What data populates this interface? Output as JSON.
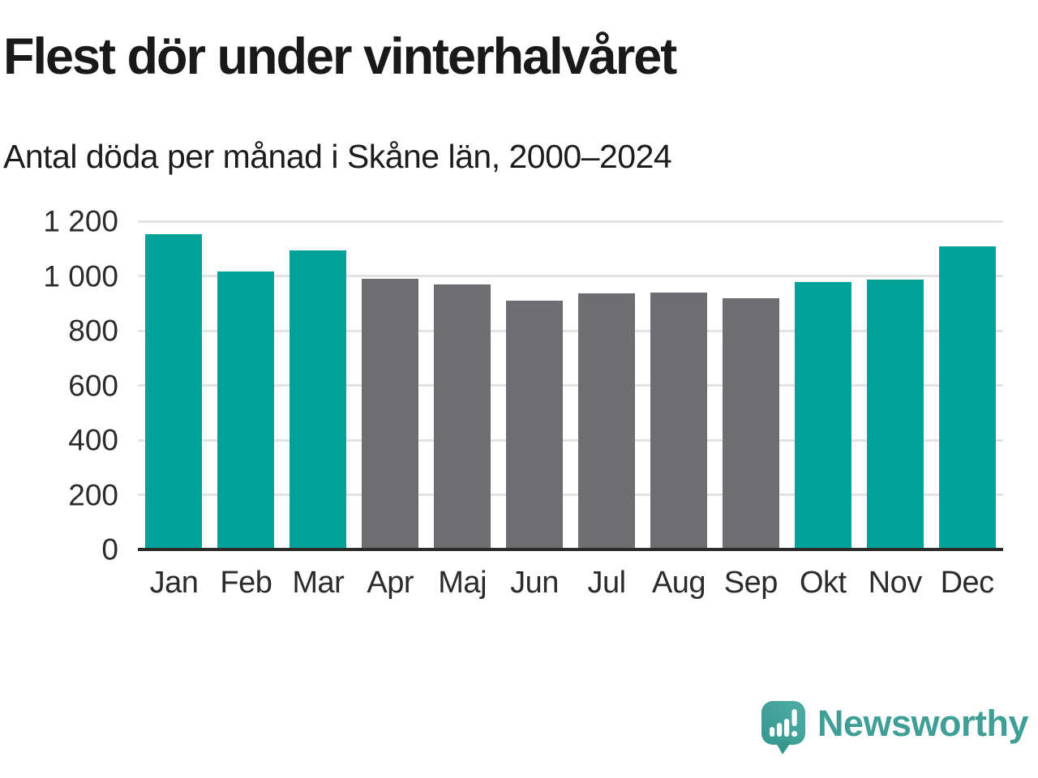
{
  "title": "Flest dör under vinterhalvåret",
  "subtitle": "Antal döda per månad i Skåne län, 2000–2024",
  "chart_data": {
    "type": "bar",
    "title": "Flest dör under vinterhalvåret",
    "subtitle": "Antal döda per månad i Skåne län, 2000–2024",
    "categories": [
      "Jan",
      "Feb",
      "Mar",
      "Apr",
      "Maj",
      "Jun",
      "Jul",
      "Aug",
      "Sep",
      "Okt",
      "Nov",
      "Dec"
    ],
    "values": [
      1152,
      1016,
      1094,
      990,
      969,
      910,
      936,
      940,
      919,
      979,
      986,
      1109
    ],
    "bar_colors": [
      "teal",
      "teal",
      "teal",
      "gray",
      "gray",
      "gray",
      "gray",
      "gray",
      "gray",
      "teal",
      "teal",
      "teal"
    ],
    "palette": {
      "teal": "#00a29a",
      "gray": "#6e6d72"
    },
    "xlabel": "",
    "ylabel": "",
    "ylim": [
      0,
      1200
    ],
    "yticks": [
      {
        "value": 0,
        "label": "0"
      },
      {
        "value": 200,
        "label": "200"
      },
      {
        "value": 400,
        "label": "400"
      },
      {
        "value": 600,
        "label": "600"
      },
      {
        "value": 800,
        "label": "800"
      },
      {
        "value": 1000,
        "label": "1 000"
      },
      {
        "value": 1200,
        "label": "1 200"
      }
    ],
    "grid": true,
    "legend": false
  },
  "branding": {
    "name": "Newsworthy",
    "logo_icon": "speech-bubble-bar-chart-icon",
    "color": "#3f9f97"
  }
}
